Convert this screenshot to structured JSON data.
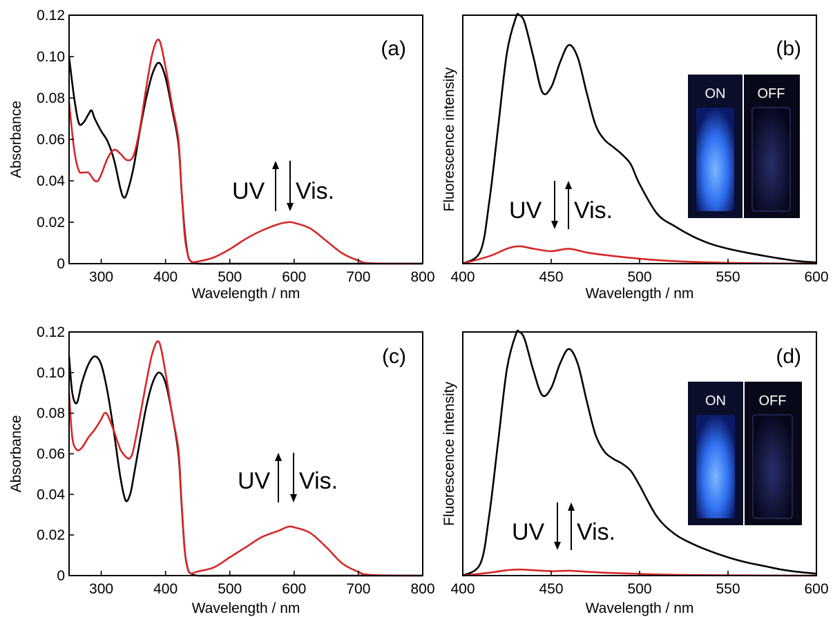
{
  "chart_data": [
    {
      "panel": "(a)",
      "type": "line",
      "xlabel": "Wavelength / nm",
      "ylabel": "Absorbance",
      "xlim": [
        250,
        800
      ],
      "ylim": [
        0,
        0.12
      ],
      "xticks": [
        300,
        400,
        500,
        600,
        700,
        800
      ],
      "yticks": [
        0,
        0.02,
        0.04,
        0.06,
        0.08,
        0.1,
        0.12
      ],
      "ytick_labels": [
        "0",
        "0.02",
        "0.04",
        "0.06",
        "0.08",
        "0.10",
        "0.12"
      ],
      "series": [
        {
          "color": "#000000",
          "x": [
            250,
            258,
            265,
            272,
            280,
            285,
            290,
            300,
            310,
            320,
            330,
            335,
            340,
            350,
            360,
            370,
            380,
            390,
            400,
            410,
            420,
            425,
            430,
            435,
            440,
            450,
            500,
            600,
            700,
            800
          ],
          "y": [
            0.1,
            0.08,
            0.068,
            0.068,
            0.072,
            0.074,
            0.07,
            0.064,
            0.059,
            0.05,
            0.036,
            0.032,
            0.034,
            0.046,
            0.064,
            0.08,
            0.092,
            0.097,
            0.09,
            0.075,
            0.058,
            0.035,
            0.015,
            0.004,
            0.001,
            0.0,
            0.0,
            0.0,
            0.0,
            0.0
          ]
        },
        {
          "color": "#d62728",
          "x": [
            250,
            258,
            265,
            272,
            280,
            285,
            290,
            295,
            300,
            310,
            320,
            330,
            340,
            350,
            360,
            370,
            380,
            390,
            400,
            410,
            420,
            425,
            430,
            435,
            440,
            450,
            475,
            500,
            525,
            550,
            575,
            590,
            600,
            625,
            650,
            675,
            700,
            720,
            800
          ],
          "y": [
            0.078,
            0.055,
            0.045,
            0.044,
            0.044,
            0.042,
            0.04,
            0.04,
            0.043,
            0.051,
            0.055,
            0.053,
            0.05,
            0.052,
            0.065,
            0.085,
            0.102,
            0.108,
            0.095,
            0.077,
            0.06,
            0.035,
            0.013,
            0.004,
            0.001,
            0.001,
            0.003,
            0.007,
            0.012,
            0.016,
            0.019,
            0.02,
            0.0197,
            0.017,
            0.011,
            0.005,
            0.0015,
            0.0002,
            0.0
          ]
        }
      ],
      "annotations": {
        "uv": "UV",
        "vis": "Vis."
      }
    },
    {
      "panel": "(b)",
      "type": "line",
      "xlabel": "Wavelength / nm",
      "ylabel": "Fluorescence intensity",
      "xlim": [
        400,
        600
      ],
      "ylim": [
        0,
        1
      ],
      "xticks": [
        400,
        450,
        500,
        550,
        600
      ],
      "series": [
        {
          "color": "#000000",
          "x": [
            400,
            410,
            415,
            420,
            425,
            430,
            432,
            435,
            440,
            445,
            450,
            455,
            460,
            465,
            470,
            475,
            480,
            485,
            490,
            495,
            500,
            510,
            520,
            530,
            540,
            550,
            560,
            570,
            580,
            590,
            600
          ],
          "y": [
            0.0,
            0.05,
            0.25,
            0.55,
            0.85,
            0.99,
            1.0,
            0.97,
            0.83,
            0.69,
            0.71,
            0.81,
            0.88,
            0.83,
            0.69,
            0.56,
            0.5,
            0.47,
            0.44,
            0.4,
            0.32,
            0.2,
            0.15,
            0.11,
            0.08,
            0.06,
            0.045,
            0.032,
            0.02,
            0.01,
            0.005
          ]
        },
        {
          "color": "#d62728",
          "x": [
            400,
            415,
            425,
            432,
            440,
            450,
            460,
            470,
            480,
            500,
            520,
            550,
            600
          ],
          "y": [
            0.0,
            0.03,
            0.06,
            0.07,
            0.06,
            0.05,
            0.06,
            0.045,
            0.035,
            0.02,
            0.01,
            0.003,
            0.0
          ]
        }
      ],
      "annotations": {
        "uv": "UV",
        "vis": "Vis."
      },
      "inset": {
        "on_label": "ON",
        "off_label": "OFF"
      }
    },
    {
      "panel": "(c)",
      "type": "line",
      "xlabel": "Wavelength / nm",
      "ylabel": "Absorbance",
      "xlim": [
        250,
        800
      ],
      "ylim": [
        0,
        0.12
      ],
      "xticks": [
        300,
        400,
        500,
        600,
        700,
        800
      ],
      "yticks": [
        0,
        0.02,
        0.04,
        0.06,
        0.08,
        0.1,
        0.12
      ],
      "ytick_labels": [
        "0",
        "0.02",
        "0.04",
        "0.06",
        "0.08",
        "0.10",
        "0.12"
      ],
      "series": [
        {
          "color": "#000000",
          "x": [
            250,
            255,
            262,
            270,
            280,
            290,
            300,
            310,
            320,
            330,
            338,
            345,
            350,
            360,
            370,
            380,
            390,
            400,
            410,
            420,
            425,
            430,
            435,
            440,
            450,
            500,
            600,
            700,
            800
          ],
          "y": [
            0.108,
            0.09,
            0.085,
            0.095,
            0.104,
            0.108,
            0.104,
            0.09,
            0.07,
            0.048,
            0.037,
            0.04,
            0.048,
            0.066,
            0.083,
            0.095,
            0.1,
            0.095,
            0.08,
            0.06,
            0.035,
            0.012,
            0.003,
            0.001,
            0.0,
            0.0,
            0.0,
            0.0,
            0.0
          ]
        },
        {
          "color": "#d62728",
          "x": [
            250,
            255,
            262,
            270,
            280,
            290,
            300,
            305,
            310,
            320,
            330,
            340,
            345,
            350,
            360,
            370,
            380,
            390,
            400,
            410,
            420,
            425,
            430,
            435,
            440,
            450,
            475,
            500,
            525,
            550,
            575,
            590,
            600,
            625,
            650,
            675,
            700,
            720,
            800
          ],
          "y": [
            0.09,
            0.068,
            0.062,
            0.063,
            0.068,
            0.072,
            0.077,
            0.08,
            0.079,
            0.071,
            0.062,
            0.058,
            0.058,
            0.062,
            0.078,
            0.095,
            0.11,
            0.115,
            0.1,
            0.08,
            0.062,
            0.036,
            0.012,
            0.003,
            0.001,
            0.002,
            0.004,
            0.009,
            0.014,
            0.019,
            0.022,
            0.024,
            0.0238,
            0.021,
            0.014,
            0.006,
            0.0018,
            0.0003,
            0.0
          ]
        }
      ],
      "annotations": {
        "uv": "UV",
        "vis": "Vis."
      }
    },
    {
      "panel": "(d)",
      "type": "line",
      "xlabel": "Wavelength / nm",
      "ylabel": "Fluorescence intensity",
      "xlim": [
        400,
        600
      ],
      "ylim": [
        0,
        1
      ],
      "xticks": [
        400,
        450,
        500,
        550,
        600
      ],
      "series": [
        {
          "color": "#000000",
          "x": [
            400,
            410,
            415,
            420,
            425,
            430,
            432,
            435,
            440,
            445,
            450,
            455,
            460,
            465,
            470,
            475,
            480,
            485,
            490,
            495,
            500,
            510,
            520,
            530,
            540,
            550,
            560,
            570,
            580,
            590,
            600
          ],
          "y": [
            0.0,
            0.05,
            0.25,
            0.55,
            0.85,
            0.99,
            1.0,
            0.97,
            0.84,
            0.74,
            0.77,
            0.87,
            0.93,
            0.87,
            0.72,
            0.58,
            0.51,
            0.48,
            0.46,
            0.43,
            0.37,
            0.24,
            0.17,
            0.13,
            0.1,
            0.075,
            0.055,
            0.04,
            0.025,
            0.015,
            0.008
          ]
        },
        {
          "color": "#d62728",
          "x": [
            400,
            415,
            425,
            432,
            440,
            450,
            460,
            470,
            480,
            500,
            520,
            550,
            600
          ],
          "y": [
            0.0,
            0.012,
            0.022,
            0.025,
            0.022,
            0.018,
            0.02,
            0.016,
            0.012,
            0.007,
            0.003,
            0.001,
            0.0
          ]
        }
      ],
      "annotations": {
        "uv": "UV",
        "vis": "Vis."
      },
      "inset": {
        "on_label": "ON",
        "off_label": "OFF"
      }
    }
  ]
}
